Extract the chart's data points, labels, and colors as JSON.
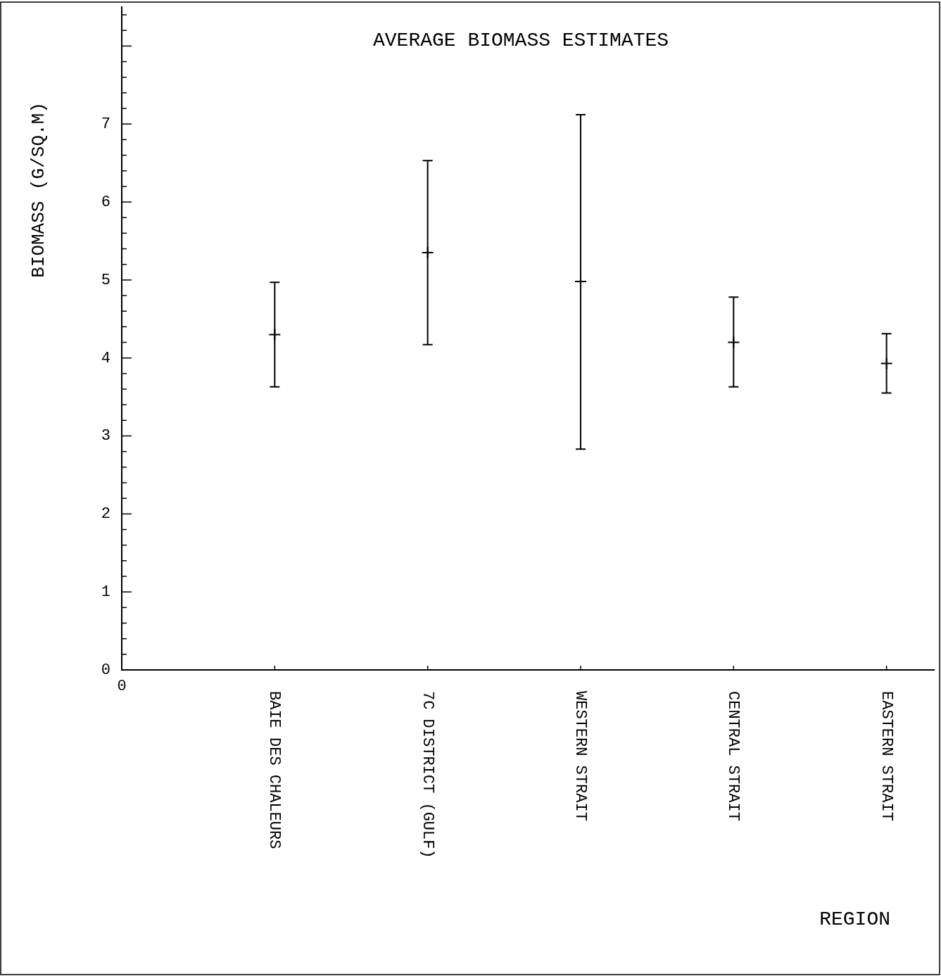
{
  "chart_data": {
    "type": "scatter",
    "title": "AVERAGE BIOMASS ESTIMATES",
    "xlabel": "REGION",
    "ylabel": "BIOMASS (G/SQ.M)",
    "categories": [
      "BAIE DES CHALEURS",
      "7C DISTRICT (GULF)",
      "WESTERN STRAIT",
      "CENTRAL STRAIT",
      "EASTERN STRAIT"
    ],
    "values": [
      4.3,
      5.35,
      4.98,
      4.2,
      3.93
    ],
    "errors": [
      [
        3.63,
        4.97
      ],
      [
        4.17,
        6.53
      ],
      [
        2.83,
        7.12
      ],
      [
        3.63,
        4.78
      ],
      [
        3.55,
        4.31
      ]
    ],
    "color": "#000000",
    "marker": "cross",
    "ylim": [
      0,
      8.5
    ],
    "yticks": [
      0,
      {
        "value": 0.2,
        "label": null
      },
      {
        "value": 0.4,
        "label": null
      },
      {
        "value": 0.6,
        "label": null
      },
      {
        "value": 0.8,
        "label": null
      },
      1,
      {
        "value": 1.2,
        "label": null
      },
      {
        "value": 1.4,
        "label": null
      },
      {
        "value": 1.6,
        "label": null
      },
      {
        "value": 1.8,
        "label": null
      },
      2,
      {
        "value": 2.2,
        "label": null
      },
      {
        "value": 2.4,
        "label": null
      },
      {
        "value": 2.6,
        "label": null
      },
      {
        "value": 2.8,
        "label": null
      },
      3,
      {
        "value": 3.2,
        "label": null
      },
      {
        "value": 3.4,
        "label": null
      },
      {
        "value": 3.6,
        "label": null
      },
      {
        "value": 3.8,
        "label": null
      },
      4,
      {
        "value": 4.2,
        "label": null
      },
      {
        "value": 4.4,
        "label": null
      },
      {
        "value": 4.6,
        "label": null
      },
      {
        "value": 4.8,
        "label": null
      },
      5,
      {
        "value": 5.2,
        "label": null
      },
      {
        "value": 5.4,
        "label": null
      },
      {
        "value": 5.6,
        "label": null
      },
      {
        "value": 5.8,
        "label": null
      },
      6,
      {
        "value": 6.2,
        "label": null
      },
      {
        "value": 6.4,
        "label": null
      },
      {
        "value": 6.6,
        "label": null
      },
      {
        "value": 6.8,
        "label": null
      },
      7,
      {
        "value": 7.2,
        "label": null
      },
      {
        "value": 7.4,
        "label": null
      },
      {
        "value": 7.6,
        "label": null
      },
      {
        "value": 7.8,
        "label": null
      },
      {
        "value": 8,
        "label": null
      },
      {
        "value": 8.2,
        "label": null
      },
      {
        "value": 8.4,
        "label": null
      }
    ],
    "annotations": [
      "0"
    ]
  }
}
